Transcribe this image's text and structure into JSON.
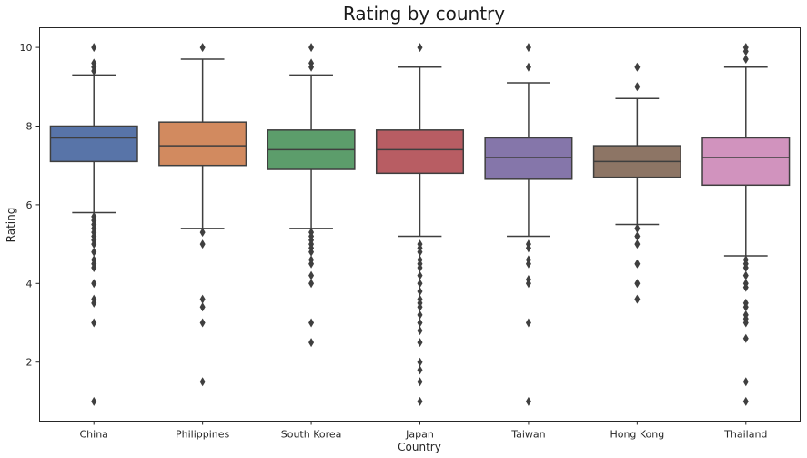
{
  "chart_data": {
    "type": "box",
    "title": "Rating by country",
    "xlabel": "Country",
    "ylabel": "Rating",
    "ylim": [
      0.5,
      10.5
    ],
    "yticks": [
      2,
      4,
      6,
      8,
      10
    ],
    "grid": false,
    "categories": [
      "China",
      "Philippines",
      "South Korea",
      "Japan",
      "Taiwan",
      "Hong Kong",
      "Thailand"
    ],
    "colors": [
      "#5874a8",
      "#d28a5f",
      "#5c9d6b",
      "#b85d63",
      "#8576aa",
      "#8d7565",
      "#d193be"
    ],
    "boxes": [
      {
        "q1": 7.1,
        "median": 7.7,
        "q3": 8.0,
        "whisker_low": 5.8,
        "whisker_high": 9.3,
        "outliers": [
          10.0,
          9.6,
          9.5,
          9.4,
          5.7,
          5.6,
          5.5,
          5.4,
          5.3,
          5.2,
          5.1,
          5.0,
          4.8,
          4.6,
          4.5,
          4.4,
          4.0,
          3.6,
          3.5,
          3.0,
          1.0
        ]
      },
      {
        "q1": 7.0,
        "median": 7.5,
        "q3": 8.1,
        "whisker_low": 5.4,
        "whisker_high": 9.7,
        "outliers": [
          10.0,
          5.3,
          5.0,
          3.6,
          3.4,
          3.0,
          1.5
        ]
      },
      {
        "q1": 6.9,
        "median": 7.4,
        "q3": 7.9,
        "whisker_low": 5.4,
        "whisker_high": 9.3,
        "outliers": [
          10.0,
          9.6,
          9.5,
          5.3,
          5.2,
          5.1,
          5.0,
          4.9,
          4.8,
          4.6,
          4.5,
          4.2,
          4.0,
          3.0,
          2.5
        ]
      },
      {
        "q1": 6.8,
        "median": 7.4,
        "q3": 7.9,
        "whisker_low": 5.2,
        "whisker_high": 9.5,
        "outliers": [
          10.0,
          5.0,
          4.9,
          4.8,
          4.6,
          4.5,
          4.4,
          4.2,
          4.0,
          3.8,
          3.6,
          3.5,
          3.4,
          3.2,
          3.0,
          2.8,
          2.5,
          2.0,
          1.8,
          1.5,
          1.0
        ]
      },
      {
        "q1": 6.65,
        "median": 7.2,
        "q3": 7.7,
        "whisker_low": 5.2,
        "whisker_high": 9.1,
        "outliers": [
          10.0,
          9.5,
          5.0,
          4.9,
          4.6,
          4.5,
          4.1,
          4.0,
          3.0,
          1.0
        ]
      },
      {
        "q1": 6.7,
        "median": 7.1,
        "q3": 7.5,
        "whisker_low": 5.5,
        "whisker_high": 8.7,
        "outliers": [
          9.5,
          9.0,
          5.4,
          5.2,
          5.0,
          4.5,
          4.0,
          3.6
        ]
      },
      {
        "q1": 6.5,
        "median": 7.2,
        "q3": 7.7,
        "whisker_low": 4.7,
        "whisker_high": 9.5,
        "outliers": [
          10.0,
          9.9,
          9.7,
          4.6,
          4.5,
          4.4,
          4.2,
          4.0,
          3.9,
          3.5,
          3.4,
          3.2,
          3.1,
          3.0,
          2.6,
          1.5,
          1.0
        ]
      }
    ]
  }
}
